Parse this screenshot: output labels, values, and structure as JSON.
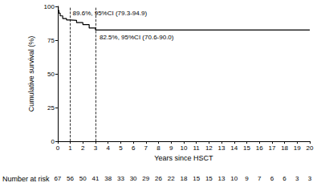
{
  "chart_data": {
    "type": "line",
    "line_style": "step",
    "color": "#000000",
    "xlabel": "Years since HSCT",
    "ylabel": "Cumulative survival (%)",
    "x": [
      0,
      0.05,
      0.1,
      0.2,
      0.4,
      0.7,
      1,
      1.5,
      2,
      2.5,
      3,
      20
    ],
    "values": [
      100,
      97,
      95,
      93,
      91,
      90,
      89.6,
      88,
      86.5,
      84,
      82.5,
      82.5
    ],
    "xlim": [
      0,
      20
    ],
    "xticks": [
      0,
      1,
      2,
      3,
      4,
      5,
      6,
      7,
      8,
      9,
      10,
      11,
      12,
      13,
      14,
      15,
      16,
      17,
      18,
      19,
      20
    ],
    "ylim": [
      0,
      100
    ],
    "yticks": [
      0,
      25,
      50,
      75,
      100
    ],
    "grid": false,
    "annotations": [
      {
        "x": 1,
        "y": 89.6,
        "text": "89.6%, 95%CI (79.3-94.9)"
      },
      {
        "x": 3,
        "y": 82.5,
        "text": "82.5%, 95%CI (70.6-90.0)"
      }
    ],
    "number_at_risk": {
      "label": "Number at risk",
      "x": [
        0,
        1,
        2,
        3,
        4,
        5,
        6,
        7,
        8,
        9,
        10,
        11,
        12,
        13,
        14,
        15,
        16,
        17,
        18,
        19,
        20
      ],
      "values": [
        67,
        56,
        50,
        41,
        38,
        33,
        30,
        29,
        26,
        22,
        18,
        15,
        15,
        13,
        10,
        9,
        7,
        6,
        6,
        3,
        3
      ]
    }
  }
}
